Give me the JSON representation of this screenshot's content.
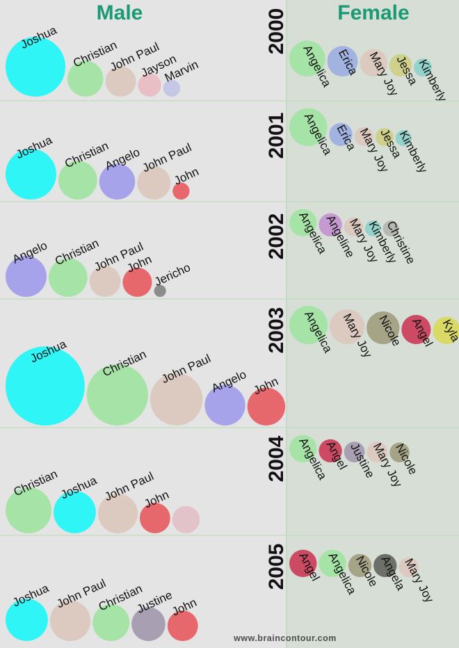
{
  "headings": {
    "male": "Male",
    "female": "Female"
  },
  "footer": "www.braincontour.com",
  "colors": {
    "background_male": "#e4e4e4",
    "background_female": "#d6ded6",
    "heading": "#1a9a74",
    "divider": "#bfd9c0",
    "names": {
      "Joshua": "#2ff5f7",
      "Christian": "#a6e3a6",
      "John Paul": "#dccac0",
      "Jayson": "#e9bfc6",
      "Marvin": "#c5c7e6",
      "Angelo": "#a7a3eb",
      "John": "#e6686d",
      "Jericho": "#8c8c8c",
      "Justine": "#a89fb2",
      "Angelica": "#a6e3a6",
      "Erica": "#a2b3e2",
      "Mary Joy": "#dccac0",
      "Jessa": "#cfd08c",
      "Kimberly": "#93d3cc",
      "Angeline": "#c49ad0",
      "Christine": "#b5b8b3",
      "Nicole": "#a6a486",
      "Angel": "#cc4a63",
      "Kyla": "#d9da66",
      "Angela": "#6d7068",
      "unlabeled": "#e2c3ca"
    }
  },
  "chart_data": {
    "type": "bubble",
    "title": "",
    "years": [
      {
        "year": "2000",
        "male": [
          {
            "name": "Joshua",
            "value": 100
          },
          {
            "name": "Christian",
            "value": 36
          },
          {
            "name": "John Paul",
            "value": 26
          },
          {
            "name": "Jayson",
            "value": 15
          },
          {
            "name": "Marvin",
            "value": 8
          }
        ],
        "female": [
          {
            "name": "Angelica",
            "value": 36
          },
          {
            "name": "Erica",
            "value": 26
          },
          {
            "name": "Mary Joy",
            "value": 21
          },
          {
            "name": "Jessa",
            "value": 14
          },
          {
            "name": "Kimberly",
            "value": 9
          }
        ]
      },
      {
        "year": "2001",
        "male": [
          {
            "name": "Joshua",
            "value": 72
          },
          {
            "name": "Christian",
            "value": 42
          },
          {
            "name": "Angelo",
            "value": 36
          },
          {
            "name": "John Paul",
            "value": 31
          },
          {
            "name": "John",
            "value": 8
          }
        ],
        "female": [
          {
            "name": "Angelica",
            "value": 40
          },
          {
            "name": "Erica",
            "value": 15
          },
          {
            "name": "Mary Joy",
            "value": 10
          },
          {
            "name": "Jessa",
            "value": 9
          },
          {
            "name": "Kimberly",
            "value": 7
          }
        ]
      },
      {
        "year": "2002",
        "male": [
          {
            "name": "Angelo",
            "value": 47
          },
          {
            "name": "Christian",
            "value": 42
          },
          {
            "name": "John Paul",
            "value": 27
          },
          {
            "name": "John",
            "value": 24
          },
          {
            "name": "Jericho",
            "value": 4
          }
        ],
        "female": [
          {
            "name": "Angelica",
            "value": 21
          },
          {
            "name": "Angeline",
            "value": 15
          },
          {
            "name": "Mary Joy",
            "value": 10
          },
          {
            "name": "Kimberly",
            "value": 7
          },
          {
            "name": "Christine",
            "value": 7
          }
        ]
      },
      {
        "year": "2003",
        "male": [
          {
            "name": "Joshua",
            "value": 175
          },
          {
            "name": "Christian",
            "value": 105
          },
          {
            "name": "John Paul",
            "value": 77
          },
          {
            "name": "Angelo",
            "value": 46
          },
          {
            "name": "John",
            "value": 40
          }
        ],
        "female": [
          {
            "name": "Angelica",
            "value": 41
          },
          {
            "name": "Mary Joy",
            "value": 34
          },
          {
            "name": "Nicole",
            "value": 30
          },
          {
            "name": "Angel",
            "value": 24
          },
          {
            "name": "Kyla",
            "value": 21
          }
        ]
      },
      {
        "year": "2004",
        "male": [
          {
            "name": "Christian",
            "value": 59
          },
          {
            "name": "Joshua",
            "value": 50
          },
          {
            "name": "John Paul",
            "value": 44
          },
          {
            "name": "John",
            "value": 26
          },
          {
            "name": "",
            "value": 21
          }
        ],
        "female": [
          {
            "name": "Angelica",
            "value": 21
          },
          {
            "name": "Angel",
            "value": 15
          },
          {
            "name": "Justine",
            "value": 12
          },
          {
            "name": "Mary Joy",
            "value": 12
          },
          {
            "name": "Nicole",
            "value": 11
          }
        ]
      },
      {
        "year": "2005",
        "male": [
          {
            "name": "Joshua",
            "value": 50
          },
          {
            "name": "John Paul",
            "value": 46
          },
          {
            "name": "Christian",
            "value": 38
          },
          {
            "name": "Justine",
            "value": 32
          },
          {
            "name": "John",
            "value": 26
          }
        ],
        "female": [
          {
            "name": "Angel",
            "value": 21
          },
          {
            "name": "Angelica",
            "value": 21
          },
          {
            "name": "Nicole",
            "value": 15
          },
          {
            "name": "Angela",
            "value": 15
          },
          {
            "name": "Mary Joy",
            "value": 11
          }
        ]
      }
    ]
  }
}
